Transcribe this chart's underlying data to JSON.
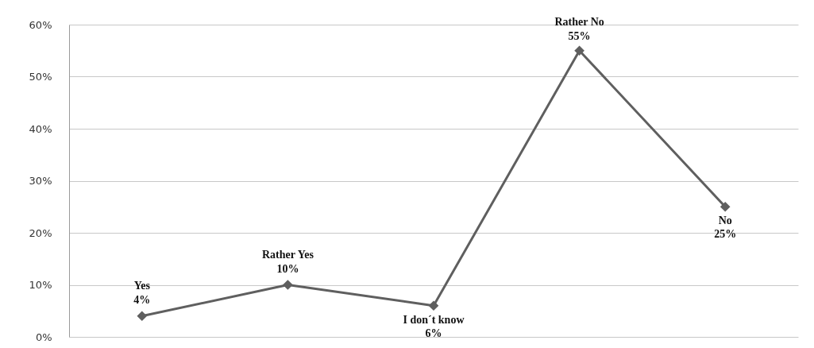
{
  "chart_data": {
    "type": "line",
    "categories": [
      "Yes",
      "Rather Yes",
      "I don´t know",
      "Rather No",
      "No"
    ],
    "series": [
      {
        "color": "#5f5f5f",
        "values": [
          4,
          10,
          6,
          55,
          25
        ],
        "value_labels": [
          "4%",
          "10%",
          "6%",
          "55%",
          "25%"
        ]
      }
    ],
    "ylim": [
      0,
      60
    ],
    "yticks": [
      {
        "value": 0,
        "label": "0%"
      },
      {
        "value": 10,
        "label": "10%"
      },
      {
        "value": 20,
        "label": "20%"
      },
      {
        "value": 30,
        "label": "30%"
      },
      {
        "value": 40,
        "label": "40%"
      },
      {
        "value": 50,
        "label": "50%"
      },
      {
        "value": 60,
        "label": "60%"
      }
    ],
    "grid": "y",
    "marker": "diamond",
    "line_style": "solid",
    "tick_labels": "y"
  }
}
